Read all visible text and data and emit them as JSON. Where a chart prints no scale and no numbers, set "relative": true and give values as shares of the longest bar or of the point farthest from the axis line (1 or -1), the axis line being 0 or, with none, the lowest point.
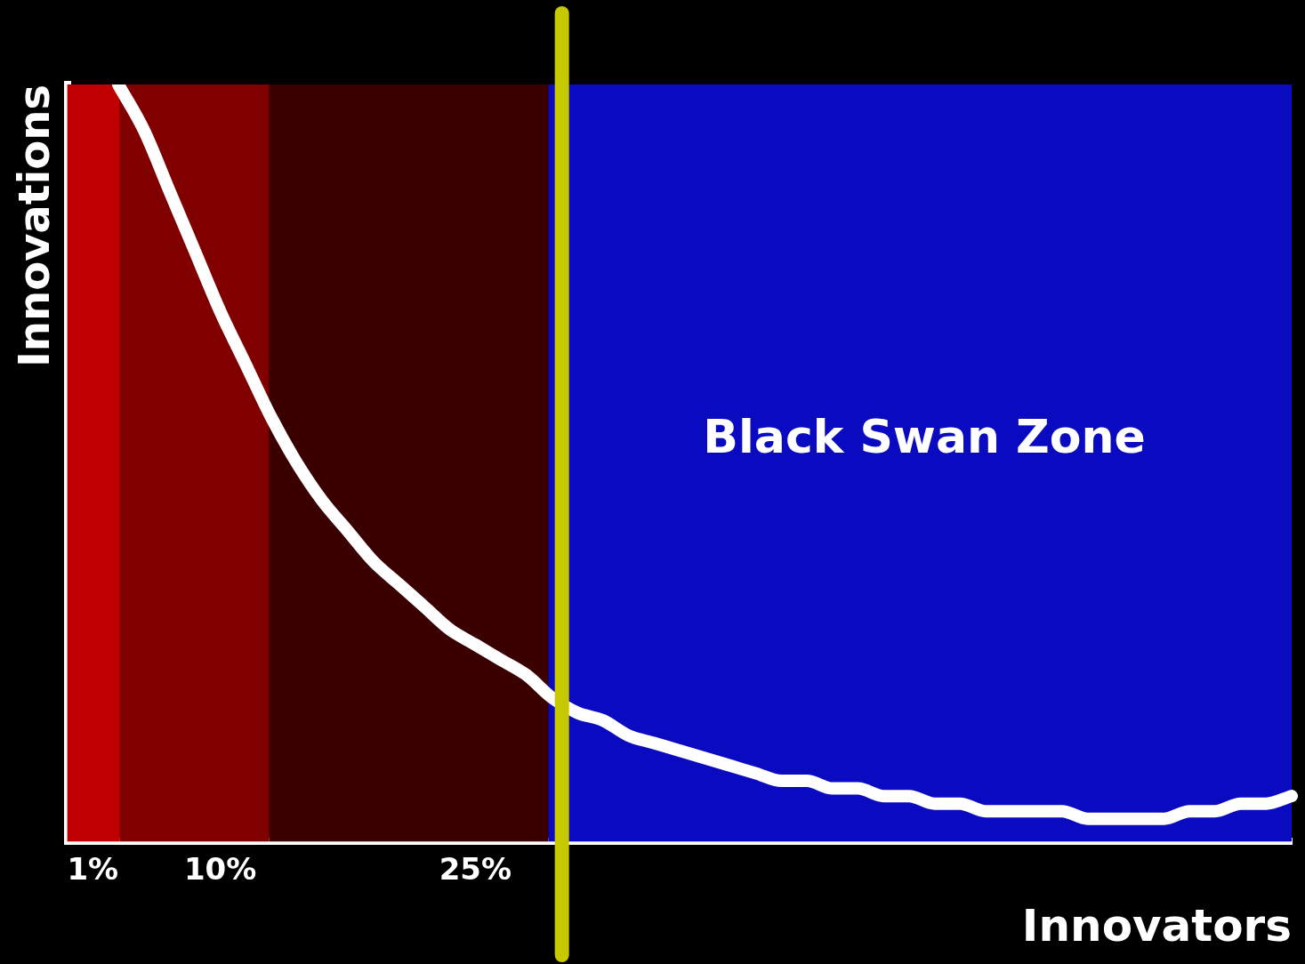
{
  "chart_data": {
    "type": "line",
    "relative": true,
    "xlabel": "Innovators",
    "ylabel": "Innovations",
    "categories": [
      null,
      "1%",
      null,
      null,
      null,
      null,
      "10%",
      null,
      null,
      null,
      null,
      null,
      null,
      null,
      null,
      null,
      "25%",
      null,
      null,
      null,
      null,
      null,
      null,
      null,
      null,
      null,
      null,
      null,
      null,
      null,
      null,
      null,
      null,
      null,
      null,
      null,
      null,
      null,
      null,
      null,
      null,
      null,
      null,
      null,
      null,
      null,
      null,
      null,
      null
    ],
    "series": [
      {
        "color": "#ffffff",
        "values": [
          null,
          null,
          1.0,
          0.94,
          0.86,
          0.78,
          0.7,
          0.63,
          0.56,
          0.5,
          0.45,
          0.41,
          0.37,
          0.34,
          0.31,
          0.28,
          0.26,
          0.24,
          0.22,
          0.19,
          0.17,
          0.16,
          0.14,
          0.13,
          0.12,
          0.11,
          0.1,
          0.09,
          0.08,
          0.08,
          0.07,
          0.07,
          0.06,
          0.06,
          0.05,
          0.05,
          0.04,
          0.04,
          0.04,
          0.04,
          0.03,
          0.03,
          0.03,
          0.03,
          0.04,
          0.04,
          0.05,
          0.05,
          0.06
        ]
      }
    ],
    "tick_labels": "x",
    "grid": false,
    "legend": false,
    "marker": "none",
    "line_style": "solid",
    "annotations": [
      "Black Swan Zone"
    ]
  }
}
